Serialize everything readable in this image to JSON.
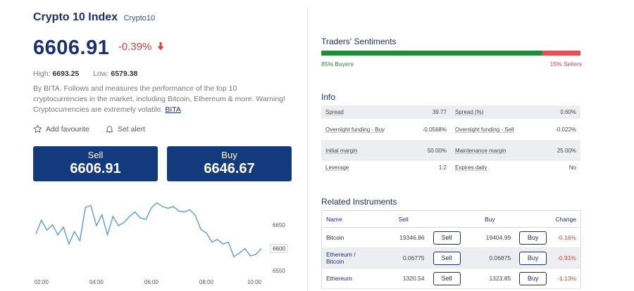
{
  "instrument": {
    "name": "Crypto 10 Index",
    "ticker": "Crypto10",
    "price": "6606.91",
    "change": "-0.39%",
    "high_label": "High:",
    "high": "6693.25",
    "low_label": "Low:",
    "low": "6579.38",
    "description": "By BITA. Follows and measures the performance of the top 10 cryptocurrencies in the market, including Bitcoin, Ethereum & more. Warning! Cryptocurrencies are extremely volatile.",
    "description_link": "BITA"
  },
  "actions": {
    "favourite_label": "Add favourite",
    "alert_label": "Set alert"
  },
  "trade": {
    "sell_label": "Sell",
    "sell_price": "6606.91",
    "buy_label": "Buy",
    "buy_price": "6646.67"
  },
  "chart_data": {
    "type": "line",
    "x_ticks": [
      "02:00",
      "04:00",
      "06:00",
      "08:00",
      "10:00"
    ],
    "y_ticks": [
      "6650",
      "6600",
      "6550"
    ],
    "y_tick_values": [
      6650,
      6600,
      6550
    ],
    "ylim": [
      6545,
      6705
    ],
    "x_range": [
      1.8,
      10.0
    ],
    "current_price_label": "6600",
    "series": [
      {
        "x": [
          1.8,
          2.0,
          2.2,
          2.4,
          2.6,
          2.8,
          3.0,
          3.2,
          3.4,
          3.6,
          3.8,
          4.0,
          4.2,
          4.4,
          4.6,
          4.8,
          5.0,
          5.2,
          5.4,
          5.6,
          5.8,
          6.0,
          6.2,
          6.4,
          6.6,
          6.8,
          7.0,
          7.2,
          7.4,
          7.6,
          7.8,
          8.0,
          8.2,
          8.4,
          8.6,
          8.8,
          9.0,
          9.2,
          9.4,
          9.6,
          9.8,
          10.0
        ],
        "y": [
          6630,
          6660,
          6638,
          6650,
          6628,
          6645,
          6608,
          6635,
          6615,
          6688,
          6692,
          6648,
          6672,
          6628,
          6668,
          6648,
          6655,
          6668,
          6678,
          6665,
          6662,
          6687,
          6698,
          6690,
          6686,
          6690,
          6680,
          6678,
          6683,
          6670,
          6640,
          6632,
          6612,
          6618,
          6608,
          6612,
          6580,
          6588,
          6598,
          6582,
          6585,
          6598
        ],
        "color": "#5a9bd5"
      }
    ]
  },
  "sentiments": {
    "title": "Traders' Sentiments",
    "buyers_pct": 85,
    "buyers_label": "85% Buyers",
    "sellers_label": "15% Sellers",
    "buy_color": "#1f8c36",
    "sell_color": "#e35353"
  },
  "info": {
    "title": "Info",
    "rows": [
      {
        "k1": "Spread",
        "v1": "39.77",
        "k2": "Spread (%)",
        "v2": "0.60%"
      },
      {
        "k1": "Overnight funding - Buy",
        "v1": "-0.0568%",
        "k2": "Overnight funding - Sell",
        "v2": "-0.022%"
      },
      {
        "k1": "Initial margin",
        "v1": "50.00%",
        "k2": "Maintenance margin",
        "v2": "25.00%"
      },
      {
        "k1": "Leverage",
        "v1": "1:2",
        "k2": "Expires daily",
        "v2": "No"
      }
    ]
  },
  "related": {
    "title": "Related Instruments",
    "headers": {
      "name": "Name",
      "sell": "Sell",
      "buy": "Buy",
      "change": "Change"
    },
    "sell_btn": "Sell",
    "buy_btn": "Buy",
    "rows": [
      {
        "name": "Bitcoin",
        "sell": "19346.86",
        "buy": "19404.99",
        "change": "-0.16%"
      },
      {
        "name": "Ethereum / Bitcoin",
        "sell": "0.06775",
        "buy": "0.06875",
        "change": "-0.91%"
      },
      {
        "name": "Ethereum",
        "sell": "1320.54",
        "buy": "1323.85",
        "change": "-1.13%"
      }
    ]
  },
  "colors": {
    "brand": "#1c2f6e",
    "button": "#123a7d",
    "negative": "#e03c3c"
  }
}
